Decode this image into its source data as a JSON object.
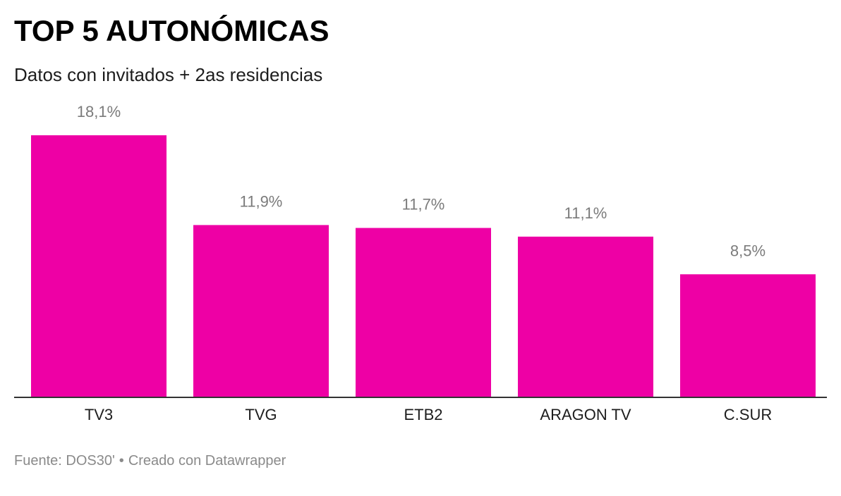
{
  "title": "TOP 5 AUTONÓMICAS",
  "subtitle": "Datos con invitados + 2as residencias",
  "footer": {
    "source": "Fuente: DOS30'",
    "separator": "•",
    "credit": "Creado con Datawrapper"
  },
  "colors": {
    "bar": "#ee00a5",
    "value_label": "#7b7b7b",
    "axis": "#333333",
    "category_label": "#1d1d1d"
  },
  "chart_data": {
    "type": "bar",
    "categories": [
      "TV3",
      "TVG",
      "ETB2",
      "ARAGON TV",
      "C.SUR"
    ],
    "values": [
      18.1,
      11.9,
      11.7,
      11.1,
      8.5
    ],
    "value_labels": [
      "18,1%",
      "11,9%",
      "11,7%",
      "11,1%",
      "8,5%"
    ],
    "title": "TOP 5 AUTONÓMICAS",
    "subtitle": "Datos con invitados + 2as residencias",
    "xlabel": "",
    "ylabel": "",
    "ylim": [
      0,
      18.1
    ],
    "grid": false,
    "legend": "none"
  }
}
